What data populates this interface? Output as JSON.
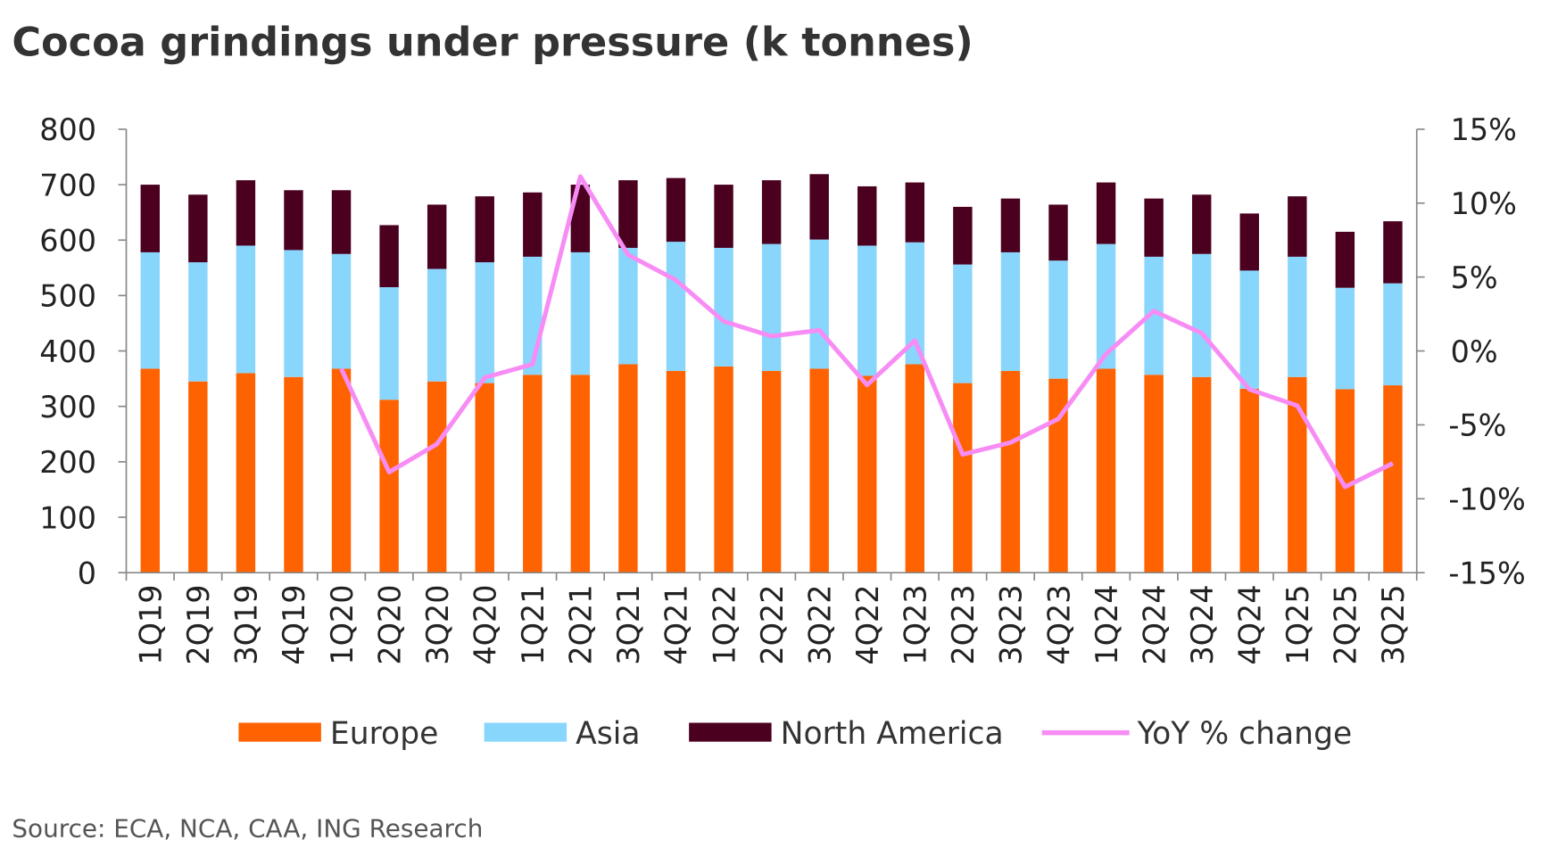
{
  "chart_data": {
    "type": "bar",
    "stacked": true,
    "title": "Cocoa grindings under pressure (k tonnes)",
    "source": "Source: ECA, NCA, CAA, ING Research",
    "categories": [
      "1Q19",
      "2Q19",
      "3Q19",
      "4Q19",
      "1Q20",
      "2Q20",
      "3Q20",
      "4Q20",
      "1Q21",
      "2Q21",
      "3Q21",
      "4Q21",
      "1Q22",
      "2Q22",
      "3Q22",
      "4Q22",
      "1Q23",
      "2Q23",
      "3Q23",
      "4Q23",
      "1Q24",
      "2Q24",
      "3Q24",
      "4Q24",
      "1Q25",
      "2Q25",
      "3Q25"
    ],
    "series": [
      {
        "name": "Europe",
        "color": "#FF6200",
        "values": [
          368,
          345,
          360,
          353,
          368,
          312,
          345,
          342,
          357,
          357,
          376,
          364,
          372,
          364,
          368,
          355,
          376,
          342,
          364,
          350,
          368,
          357,
          353,
          332,
          353,
          331,
          338
        ]
      },
      {
        "name": "Asia",
        "color": "#89D6FD",
        "values": [
          210,
          215,
          230,
          229,
          207,
          203,
          203,
          218,
          213,
          221,
          210,
          233,
          214,
          229,
          233,
          235,
          220,
          214,
          214,
          213,
          225,
          213,
          222,
          213,
          217,
          183,
          184
        ]
      },
      {
        "name": "North America",
        "color": "#4B0020",
        "values": [
          122,
          122,
          118,
          108,
          115,
          112,
          116,
          119,
          116,
          122,
          122,
          115,
          114,
          115,
          118,
          107,
          108,
          104,
          97,
          101,
          111,
          105,
          107,
          103,
          109,
          101,
          112
        ]
      }
    ],
    "line_series": {
      "name": "YoY % change",
      "color": "#F78CF5",
      "axis": "right",
      "values": [
        null,
        null,
        null,
        null,
        -1.2,
        -8.2,
        -6.3,
        -1.8,
        -0.9,
        11.8,
        6.5,
        4.8,
        2.0,
        1.0,
        1.4,
        -2.3,
        0.7,
        -7.0,
        -6.2,
        -4.6,
        -0.2,
        2.7,
        1.2,
        -2.6,
        -3.7,
        -9.2,
        -7.6
      ]
    },
    "ylim": [
      0,
      800
    ],
    "yticks": [
      0,
      100,
      200,
      300,
      400,
      500,
      600,
      700,
      800
    ],
    "y2lim": [
      -15,
      15
    ],
    "y2ticks": [
      "-15%",
      "-10%",
      "-5%",
      "0%",
      "5%",
      "10%",
      "15%"
    ],
    "legend": "bottom",
    "grid": false
  }
}
